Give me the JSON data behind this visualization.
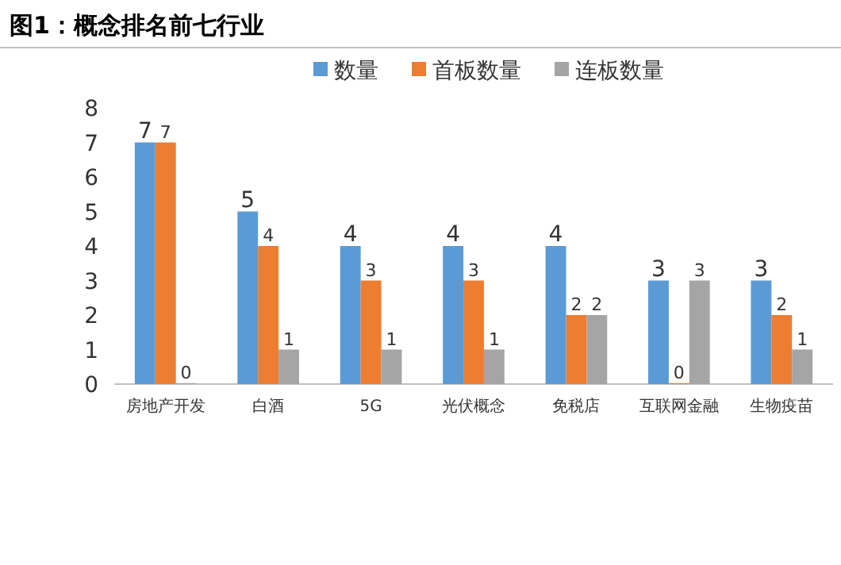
{
  "chart_data": {
    "type": "bar",
    "title": "图1：概念排名前七行业",
    "categories": [
      "房地产开发",
      "白酒",
      "5G",
      "光伏概念",
      "免税店",
      "互联网金融",
      "生物疫苗"
    ],
    "series": [
      {
        "name": "数量",
        "color": "#5b9bd5",
        "values": [
          7,
          5,
          4,
          4,
          4,
          3,
          3
        ]
      },
      {
        "name": "首板数量",
        "color": "#ed7d31",
        "values": [
          7,
          4,
          3,
          3,
          2,
          0,
          2
        ]
      },
      {
        "name": "连板数量",
        "color": "#a5a5a5",
        "values": [
          0,
          1,
          1,
          1,
          2,
          3,
          1
        ]
      }
    ],
    "ylim": [
      0,
      8
    ],
    "yticks": [
      0,
      1,
      2,
      3,
      4,
      5,
      6,
      7,
      8
    ],
    "data_labels": true,
    "legend": "top"
  }
}
